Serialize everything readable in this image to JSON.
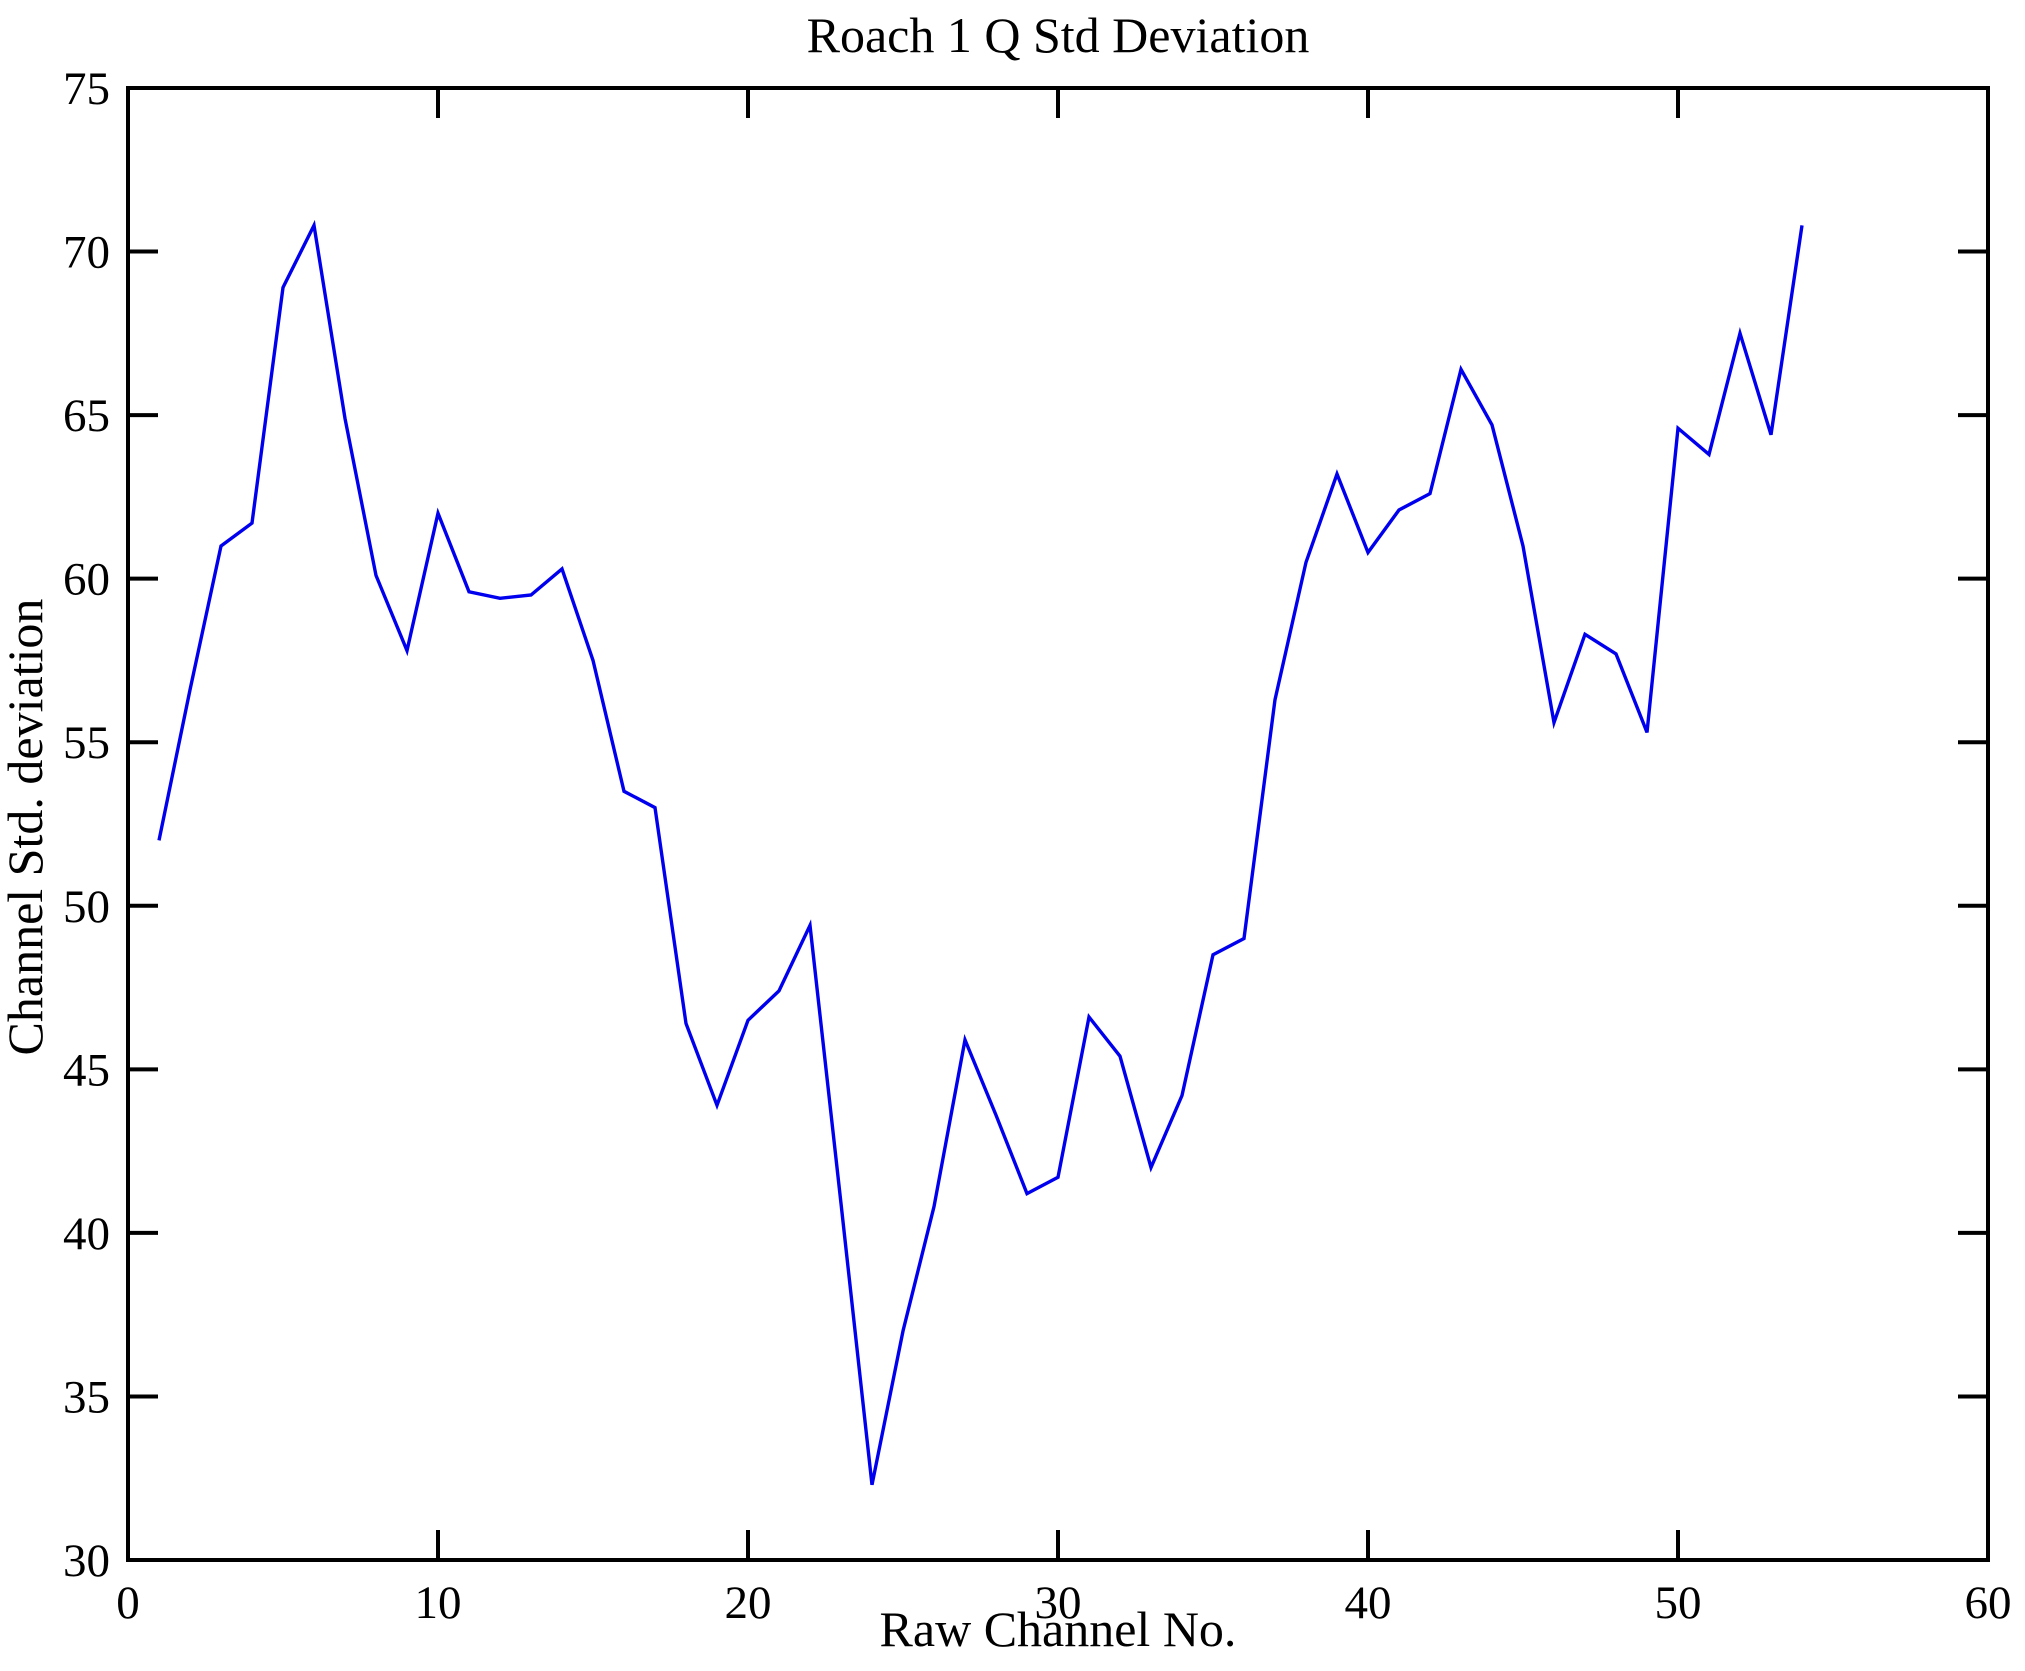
{
  "figure": {
    "background_color": "#ffffff",
    "axis_color": "#000000",
    "title": "Roach 1 Q Std Deviation",
    "xlabel": "Raw Channel No.",
    "ylabel": "Channel Std. deviation"
  },
  "chart_data": {
    "type": "line",
    "title": "Roach 1 Q Std Deviation",
    "xlabel": "Raw Channel No.",
    "ylabel": "Channel Std. deviation",
    "xlim": [
      0,
      60
    ],
    "ylim": [
      30,
      75
    ],
    "x_ticks": [
      0,
      10,
      20,
      30,
      40,
      50,
      60
    ],
    "y_ticks": [
      30,
      35,
      40,
      45,
      50,
      55,
      60,
      65,
      70,
      75
    ],
    "grid": false,
    "legend": null,
    "line_color": "#0000ee",
    "series": [
      {
        "name": "Channel Std. deviation",
        "x": [
          1,
          2,
          3,
          4,
          5,
          6,
          7,
          8,
          9,
          10,
          11,
          12,
          13,
          14,
          15,
          16,
          17,
          18,
          19,
          20,
          21,
          22,
          23,
          24,
          25,
          26,
          27,
          28,
          29,
          30,
          31,
          32,
          33,
          34,
          35,
          36,
          37,
          38,
          39,
          40,
          41,
          42,
          43,
          44,
          45,
          46,
          47,
          48,
          49,
          50,
          51,
          52,
          53,
          54
        ],
        "y": [
          52.0,
          56.6,
          61.0,
          61.7,
          68.9,
          70.8,
          64.9,
          60.1,
          57.8,
          62.0,
          59.6,
          59.4,
          59.5,
          60.3,
          57.5,
          53.5,
          53.0,
          46.4,
          43.9,
          46.5,
          47.4,
          49.4,
          40.9,
          32.3,
          37.0,
          40.8,
          45.9,
          43.6,
          41.2,
          41.7,
          46.6,
          45.4,
          42.0,
          44.2,
          48.5,
          49.0,
          56.3,
          60.5,
          63.2,
          60.8,
          62.1,
          62.6,
          66.4,
          64.7,
          61.0,
          55.6,
          58.3,
          57.7,
          55.3,
          64.6,
          63.8,
          67.5,
          64.4,
          70.8
        ]
      }
    ]
  }
}
